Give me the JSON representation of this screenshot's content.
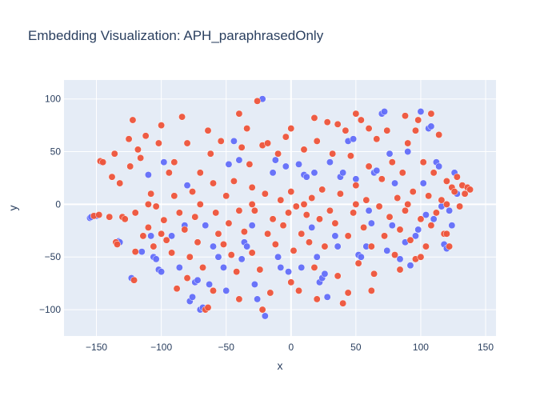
{
  "chart_data": {
    "type": "scatter",
    "title": "Embedding Visualization: APH_paraphrasedOnly",
    "xlabel": "x",
    "ylabel": "y",
    "xlim": [
      -175,
      158
    ],
    "ylim": [
      -125,
      118
    ],
    "xticks": [
      -150,
      -100,
      -50,
      0,
      50,
      100,
      150
    ],
    "yticks": [
      -100,
      -50,
      0,
      50,
      100
    ],
    "xtick_labels": [
      "−150",
      "−100",
      "−50",
      "0",
      "50",
      "100",
      "150"
    ],
    "ytick_labels": [
      "−100",
      "−50",
      "0",
      "50",
      "100"
    ],
    "grid": true,
    "plot_background": "#e5ecf6",
    "series": [
      {
        "color": "#636efa",
        "points": [
          [
            -155,
            -13
          ],
          [
            -154,
            -12
          ],
          [
            -150,
            -11
          ],
          [
            -146,
            40
          ],
          [
            -133,
            -35
          ],
          [
            -132,
            -36
          ],
          [
            -123,
            -70
          ],
          [
            -115,
            -45
          ],
          [
            -110,
            28
          ],
          [
            -108,
            -30
          ],
          [
            -106,
            -50
          ],
          [
            -104,
            -52
          ],
          [
            -102,
            -62
          ],
          [
            -100,
            -64
          ],
          [
            -98,
            40
          ],
          [
            -92,
            -30
          ],
          [
            -86,
            -60
          ],
          [
            -82,
            -20
          ],
          [
            -80,
            18
          ],
          [
            -78,
            -92
          ],
          [
            -76,
            -88
          ],
          [
            -74,
            -74
          ],
          [
            -72,
            -72
          ],
          [
            -70,
            -100
          ],
          [
            -68,
            -98
          ],
          [
            -66,
            -20
          ],
          [
            -63,
            -76
          ],
          [
            -60,
            -40
          ],
          [
            -56,
            -50
          ],
          [
            -52,
            -60
          ],
          [
            -50,
            -82
          ],
          [
            -48,
            38
          ],
          [
            -44,
            60
          ],
          [
            -40,
            42
          ],
          [
            -38,
            -52
          ],
          [
            -36,
            -36
          ],
          [
            -34,
            -40
          ],
          [
            -30,
            -20
          ],
          [
            -28,
            -76
          ],
          [
            -26,
            -90
          ],
          [
            -22,
            100
          ],
          [
            -20,
            -106
          ],
          [
            -14,
            30
          ],
          [
            -12,
            42
          ],
          [
            -10,
            -50
          ],
          [
            -8,
            -60
          ],
          [
            -4,
            36
          ],
          [
            -2,
            -64
          ],
          [
            6,
            38
          ],
          [
            8,
            -60
          ],
          [
            10,
            28
          ],
          [
            12,
            26
          ],
          [
            16,
            -22
          ],
          [
            18,
            30
          ],
          [
            20,
            -50
          ],
          [
            22,
            -74
          ],
          [
            24,
            -70
          ],
          [
            26,
            -66
          ],
          [
            28,
            -88
          ],
          [
            30,
            40
          ],
          [
            34,
            -30
          ],
          [
            36,
            -40
          ],
          [
            38,
            26
          ],
          [
            40,
            30
          ],
          [
            44,
            60
          ],
          [
            48,
            62
          ],
          [
            50,
            24
          ],
          [
            52,
            -48
          ],
          [
            54,
            -50
          ],
          [
            58,
            -40
          ],
          [
            60,
            -6
          ],
          [
            62,
            -18
          ],
          [
            64,
            30
          ],
          [
            66,
            32
          ],
          [
            70,
            86
          ],
          [
            72,
            88
          ],
          [
            74,
            -44
          ],
          [
            76,
            48
          ],
          [
            78,
            -20
          ],
          [
            80,
            20
          ],
          [
            84,
            -52
          ],
          [
            88,
            -36
          ],
          [
            90,
            50
          ],
          [
            92,
            -58
          ],
          [
            96,
            -30
          ],
          [
            98,
            -24
          ],
          [
            100,
            88
          ],
          [
            102,
            20
          ],
          [
            104,
            -10
          ],
          [
            106,
            72
          ],
          [
            108,
            74
          ],
          [
            110,
            -14
          ],
          [
            112,
            40
          ],
          [
            114,
            36
          ],
          [
            116,
            -2
          ],
          [
            118,
            -38
          ],
          [
            120,
            -42
          ],
          [
            122,
            -6
          ],
          [
            124,
            -20
          ],
          [
            126,
            30
          ],
          [
            128,
            10
          ]
        ]
      },
      {
        "color": "#ef553b",
        "points": [
          [
            -152,
            -11
          ],
          [
            -148,
            -10
          ],
          [
            -147,
            41
          ],
          [
            -145,
            40
          ],
          [
            -140,
            -12
          ],
          [
            -138,
            26
          ],
          [
            -135,
            -36
          ],
          [
            -134,
            -38
          ],
          [
            -132,
            20
          ],
          [
            -130,
            -12
          ],
          [
            -128,
            -14
          ],
          [
            -125,
            62
          ],
          [
            -122,
            80
          ],
          [
            -121,
            -72
          ],
          [
            -120,
            -45
          ],
          [
            -118,
            52
          ],
          [
            -116,
            44
          ],
          [
            -114,
            -30
          ],
          [
            -112,
            65
          ],
          [
            -110,
            -22
          ],
          [
            -108,
            10
          ],
          [
            -106,
            -40
          ],
          [
            -104,
            -2
          ],
          [
            -102,
            58
          ],
          [
            -100,
            75
          ],
          [
            -98,
            -15
          ],
          [
            -96,
            -34
          ],
          [
            -94,
            30
          ],
          [
            -92,
            -46
          ],
          [
            -90,
            8
          ],
          [
            -88,
            -80
          ],
          [
            -86,
            -8
          ],
          [
            -84,
            83
          ],
          [
            -82,
            -24
          ],
          [
            -80,
            58
          ],
          [
            -78,
            -50
          ],
          [
            -76,
            12
          ],
          [
            -74,
            -12
          ],
          [
            -72,
            -36
          ],
          [
            -70,
            30
          ],
          [
            -68,
            -60
          ],
          [
            -66,
            -100
          ],
          [
            -64,
            -98
          ],
          [
            -62,
            48
          ],
          [
            -60,
            20
          ],
          [
            -58,
            -8
          ],
          [
            -56,
            -28
          ],
          [
            -54,
            60
          ],
          [
            -52,
            -38
          ],
          [
            -50,
            8
          ],
          [
            -48,
            -18
          ],
          [
            -46,
            -48
          ],
          [
            -44,
            22
          ],
          [
            -42,
            -64
          ],
          [
            -40,
            -6
          ],
          [
            -38,
            54
          ],
          [
            -36,
            -26
          ],
          [
            -34,
            72
          ],
          [
            -32,
            38
          ],
          [
            -30,
            -46
          ],
          [
            -28,
            -6
          ],
          [
            -26,
            98
          ],
          [
            -24,
            -62
          ],
          [
            -22,
            56
          ],
          [
            -20,
            10
          ],
          [
            -18,
            -28
          ],
          [
            -16,
            -84
          ],
          [
            -14,
            -14
          ],
          [
            -12,
            -38
          ],
          [
            -10,
            48
          ],
          [
            -8,
            4
          ],
          [
            -6,
            -20
          ],
          [
            -4,
            64
          ],
          [
            -2,
            -8
          ],
          [
            0,
            12
          ],
          [
            2,
            -44
          ],
          [
            4,
            -2
          ],
          [
            6,
            -82
          ],
          [
            8,
            -28
          ],
          [
            10,
            52
          ],
          [
            12,
            -10
          ],
          [
            14,
            -36
          ],
          [
            16,
            6
          ],
          [
            18,
            -60
          ],
          [
            20,
            60
          ],
          [
            22,
            -14
          ],
          [
            24,
            14
          ],
          [
            26,
            -40
          ],
          [
            28,
            78
          ],
          [
            30,
            -6
          ],
          [
            32,
            48
          ],
          [
            34,
            -18
          ],
          [
            36,
            -68
          ],
          [
            38,
            10
          ],
          [
            40,
            -94
          ],
          [
            42,
            70
          ],
          [
            44,
            -30
          ],
          [
            46,
            46
          ],
          [
            48,
            -8
          ],
          [
            50,
            18
          ],
          [
            52,
            -56
          ],
          [
            54,
            80
          ],
          [
            56,
            -22
          ],
          [
            58,
            4
          ],
          [
            60,
            36
          ],
          [
            62,
            -40
          ],
          [
            64,
            -66
          ],
          [
            66,
            62
          ],
          [
            68,
            -2
          ],
          [
            70,
            24
          ],
          [
            72,
            -30
          ],
          [
            74,
            70
          ],
          [
            76,
            -12
          ],
          [
            78,
            40
          ],
          [
            80,
            -48
          ],
          [
            82,
            6
          ],
          [
            84,
            -24
          ],
          [
            86,
            30
          ],
          [
            88,
            -6
          ],
          [
            90,
            58
          ],
          [
            92,
            -34
          ],
          [
            94,
            12
          ],
          [
            96,
            -52
          ],
          [
            98,
            80
          ],
          [
            100,
            -14
          ],
          [
            102,
            40
          ],
          [
            104,
            -40
          ],
          [
            106,
            8
          ],
          [
            108,
            -20
          ],
          [
            110,
            30
          ],
          [
            112,
            -8
          ],
          [
            114,
            66
          ],
          [
            116,
            4
          ],
          [
            118,
            -28
          ],
          [
            120,
            22
          ],
          [
            122,
            -40
          ],
          [
            124,
            16
          ],
          [
            126,
            12
          ],
          [
            128,
            26
          ],
          [
            130,
            -2
          ],
          [
            132,
            18
          ],
          [
            134,
            10
          ],
          [
            136,
            16
          ],
          [
            138,
            14
          ],
          [
            -124,
            36
          ],
          [
            -90,
            40
          ],
          [
            -64,
            70
          ],
          [
            -40,
            86
          ],
          [
            -30,
            16
          ],
          [
            -18,
            58
          ],
          [
            0,
            72
          ],
          [
            18,
            82
          ],
          [
            36,
            76
          ],
          [
            50,
            86
          ],
          [
            60,
            72
          ],
          [
            88,
            84
          ],
          [
            96,
            70
          ],
          [
            108,
            86
          ],
          [
            -136,
            48
          ],
          [
            -120,
            -8
          ],
          [
            -100,
            -28
          ],
          [
            -80,
            -70
          ],
          [
            -60,
            -82
          ],
          [
            -40,
            -90
          ],
          [
            -22,
            -100
          ],
          [
            0,
            -74
          ],
          [
            20,
            -90
          ],
          [
            44,
            -84
          ],
          [
            62,
            -82
          ],
          [
            84,
            -62
          ],
          [
            100,
            -50
          ],
          [
            120,
            -28
          ],
          [
            -110,
            0
          ],
          [
            -70,
            0
          ],
          [
            -30,
            0
          ],
          [
            10,
            0
          ],
          [
            50,
            0
          ],
          [
            90,
            0
          ],
          [
            120,
            0
          ]
        ]
      }
    ]
  }
}
